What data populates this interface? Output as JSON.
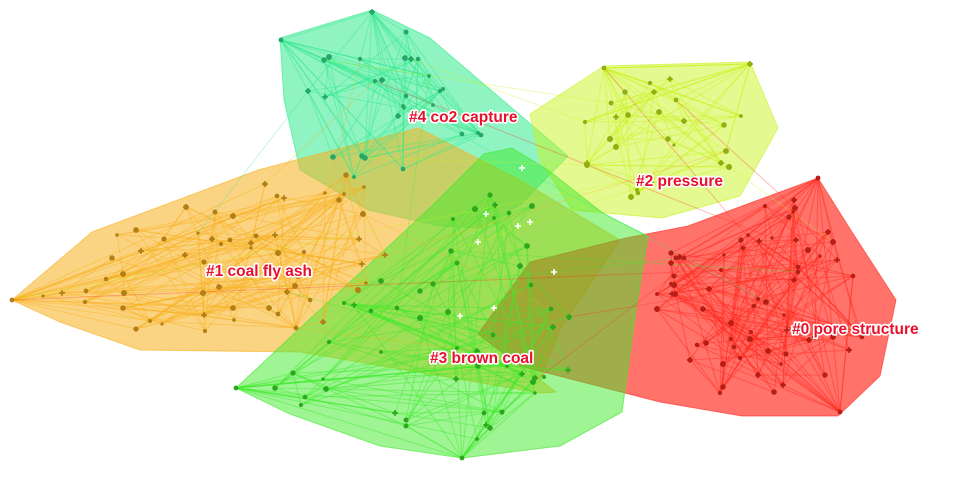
{
  "label_color": "#e8112d",
  "clusters": [
    {
      "id": "0",
      "label": "#0 pore structure",
      "color": "#ff2a1f"
    },
    {
      "id": "1",
      "label": "#1 coal fly ash",
      "color": "#f7b01e"
    },
    {
      "id": "2",
      "label": "#2 pressure",
      "color": "#c9f21a"
    },
    {
      "id": "3",
      "label": "#3 brown coal",
      "color": "#3fea2a"
    },
    {
      "id": "4",
      "label": "#4 co2 capture",
      "color": "#34ea8f"
    }
  ]
}
